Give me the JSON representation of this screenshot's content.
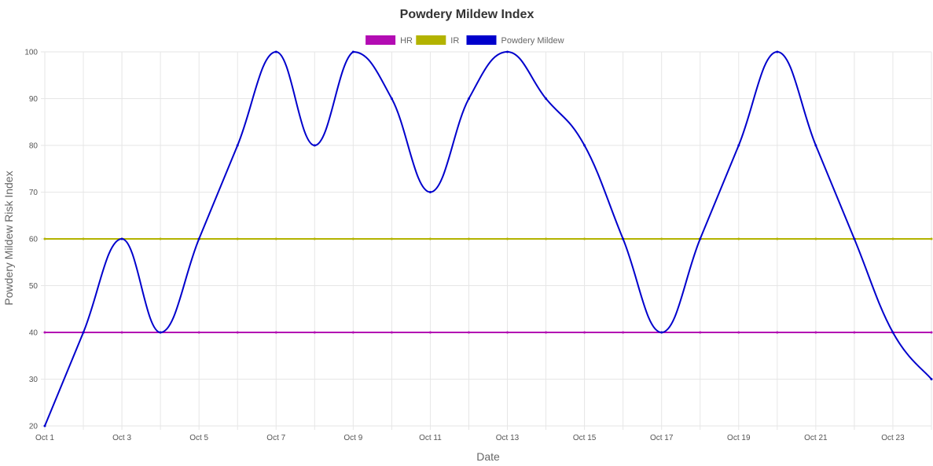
{
  "chart_data": {
    "type": "line",
    "title": "Powdery Mildew Index",
    "xlabel": "Date",
    "ylabel": "Powdery Mildew Risk Index",
    "ylim": [
      20,
      100
    ],
    "yticks": [
      20,
      30,
      40,
      50,
      60,
      70,
      80,
      90,
      100
    ],
    "grid": true,
    "legend_position": "top-center",
    "categories": [
      "Oct 1",
      "Oct 2",
      "Oct 3",
      "Oct 4",
      "Oct 5",
      "Oct 6",
      "Oct 7",
      "Oct 8",
      "Oct 9",
      "Oct 10",
      "Oct 11",
      "Oct 12",
      "Oct 13",
      "Oct 14",
      "Oct 15",
      "Oct 16",
      "Oct 17",
      "Oct 18",
      "Oct 19",
      "Oct 20",
      "Oct 21",
      "Oct 22",
      "Oct 23",
      "Oct 24"
    ],
    "x_tick_labels": [
      "Oct 1",
      "Oct 3",
      "Oct 5",
      "Oct 7",
      "Oct 9",
      "Oct 11",
      "Oct 13",
      "Oct 15",
      "Oct 17",
      "Oct 19",
      "Oct 21",
      "Oct 23"
    ],
    "series": [
      {
        "name": "HR",
        "color": "#b30cb3",
        "values": [
          40,
          40,
          40,
          40,
          40,
          40,
          40,
          40,
          40,
          40,
          40,
          40,
          40,
          40,
          40,
          40,
          40,
          40,
          40,
          40,
          40,
          40,
          40,
          40
        ]
      },
      {
        "name": "IR",
        "color": "#b3b300",
        "values": [
          60,
          60,
          60,
          60,
          60,
          60,
          60,
          60,
          60,
          60,
          60,
          60,
          60,
          60,
          60,
          60,
          60,
          60,
          60,
          60,
          60,
          60,
          60,
          60
        ]
      },
      {
        "name": "Powdery Mildew",
        "color": "#0000cc",
        "values": [
          20,
          40,
          60,
          40,
          60,
          80,
          100,
          80,
          100,
          90,
          70,
          90,
          100,
          90,
          80,
          60,
          40,
          60,
          80,
          100,
          80,
          60,
          40,
          30
        ]
      }
    ]
  }
}
